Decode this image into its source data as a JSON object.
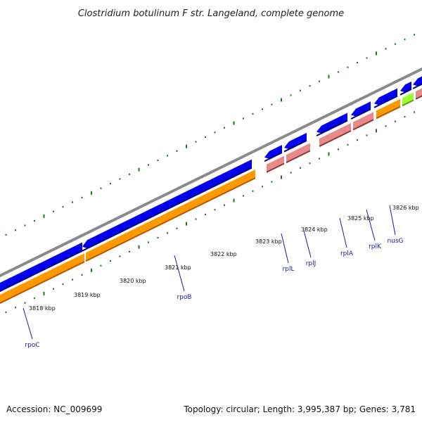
{
  "title": "Clostridium botulinum F str. Langeland, complete genome",
  "footer": {
    "accession": "Accession: NC_009699",
    "summary": "Topology: circular; Length: 3,995,387 bp; Genes: 3,781"
  },
  "colors": {
    "backbone": "#8a8a8a",
    "cds_forward": "#0000ee",
    "cds_reverse": "#0000ee",
    "cds_orange": "#ff9900",
    "rrna_pink": "#e88a8a",
    "green_gene": "#99ff33",
    "ticks": "#1a7a1a",
    "label_line": "#1a1aa6"
  },
  "kbp_labels": [
    "3818 kbp",
    "3819 kbp",
    "3820 kbp",
    "3821 kbp",
    "3822 kbp",
    "3823 kbp",
    "3824 kbp",
    "3825 kbp",
    "3826 kbp"
  ],
  "genes": [
    {
      "name": "rpoC"
    },
    {
      "name": "rpoB"
    },
    {
      "name": "rplL"
    },
    {
      "name": "rplJ"
    },
    {
      "name": "rplA"
    },
    {
      "name": "rplK"
    },
    {
      "name": "nusG"
    }
  ]
}
